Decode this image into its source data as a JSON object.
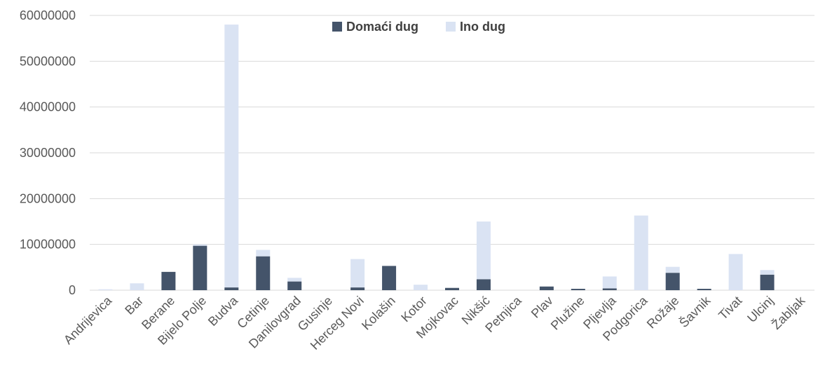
{
  "chart_data": {
    "type": "bar",
    "stacked": true,
    "title": "",
    "xlabel": "",
    "ylabel": "",
    "ylim": [
      0,
      60000000
    ],
    "yticks": [
      0,
      10000000,
      20000000,
      30000000,
      40000000,
      50000000,
      60000000
    ],
    "ytick_labels": [
      "0",
      "10000000",
      "20000000",
      "30000000",
      "40000000",
      "50000000",
      "60000000"
    ],
    "grid": true,
    "legend_position": "top-center",
    "categories": [
      "Andrijevica",
      "Bar",
      "Berane",
      "Bijelo Polje",
      "Budva",
      "Cetinje",
      "Danilovgrad",
      "Gusinje",
      "Herceg Novi",
      "Kolašin",
      "Kotor",
      "Mojkovac",
      "Nikšić",
      "Petnjica",
      "Plav",
      "Plužine",
      "Pljevlja",
      "Podgorica",
      "Rožaje",
      "Šavnik",
      "Tivat",
      "Ulcinj",
      "Žabljak"
    ],
    "series": [
      {
        "name": "Domaći dug",
        "color": "#44546a",
        "values": [
          0,
          0,
          4000000,
          9700000,
          600000,
          7400000,
          1900000,
          0,
          600000,
          5300000,
          0,
          500000,
          2400000,
          0,
          800000,
          300000,
          400000,
          0,
          3800000,
          300000,
          0,
          3400000,
          0
        ]
      },
      {
        "name": "Ino dug",
        "color": "#dae3f3",
        "values": [
          200000,
          1500000,
          0,
          300000,
          57400000,
          1400000,
          800000,
          0,
          6200000,
          0,
          1200000,
          0,
          12600000,
          0,
          0,
          0,
          2600000,
          16300000,
          1300000,
          0,
          7900000,
          1000000,
          0
        ]
      }
    ]
  }
}
